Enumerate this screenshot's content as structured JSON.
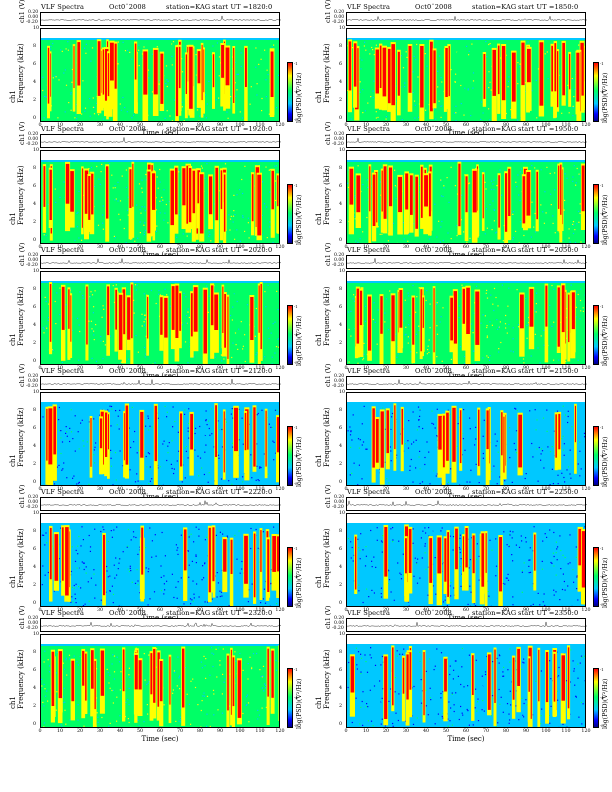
{
  "header": {
    "title": "VLF Spectra",
    "station": "station=KAG",
    "ut_prefix": "start  UT ="
  },
  "axes": {
    "wave_ylabel": "ch1 (V)",
    "spec_ylabel": "Frequency  (kHz)",
    "spec_ylabel_prefix": "ch1",
    "xlabel": "Time  (sec)",
    "colorbar_label": "log(PSD)(V²/Hz)",
    "wave_yticks": [
      "0.20",
      "0.00",
      "-0.20"
    ],
    "freq_yticks": [
      "10",
      "8",
      "6",
      "4",
      "2",
      "0"
    ],
    "time_xticks": [
      "0",
      "10",
      "20",
      "30",
      "40",
      "50",
      "60",
      "70",
      "80",
      "90",
      "100",
      "110",
      "120"
    ],
    "colorbar_ticks": [
      "-1",
      "-4",
      "-8"
    ]
  },
  "colors": {
    "high": "#ff0000",
    "mid_high": "#ffff00",
    "mid": "#00ff66",
    "low": "#00c8ff",
    "lowest": "#0000ff"
  },
  "chart_data": [
    {
      "type": "heatmap",
      "date": "Oct0¨2008",
      "start_ut": "1820:0",
      "x_unit": "sec",
      "xlim": [
        0,
        120
      ],
      "y_unit": "kHz",
      "ylim": [
        0,
        10
      ],
      "activity": "high"
    },
    {
      "type": "heatmap",
      "date": "Oct0¨2008",
      "start_ut": "1850:0",
      "x_unit": "sec",
      "xlim": [
        0,
        120
      ],
      "y_unit": "kHz",
      "ylim": [
        0,
        10
      ],
      "activity": "high"
    },
    {
      "type": "heatmap",
      "date": "Oct0¨2008",
      "start_ut": "1920:0",
      "x_unit": "sec",
      "xlim": [
        0,
        120
      ],
      "y_unit": "kHz",
      "ylim": [
        0,
        10
      ],
      "activity": "high"
    },
    {
      "type": "heatmap",
      "date": "Oct0¨2008",
      "start_ut": "1950:0",
      "x_unit": "sec",
      "xlim": [
        0,
        120
      ],
      "y_unit": "kHz",
      "ylim": [
        0,
        10
      ],
      "activity": "high"
    },
    {
      "type": "heatmap",
      "date": "Oct0¨2008",
      "start_ut": "2020:0",
      "x_unit": "sec",
      "xlim": [
        0,
        120
      ],
      "y_unit": "kHz",
      "ylim": [
        0,
        10
      ],
      "activity": "medium"
    },
    {
      "type": "heatmap",
      "date": "Oct0¨2008",
      "start_ut": "2050:0",
      "x_unit": "sec",
      "xlim": [
        0,
        120
      ],
      "y_unit": "kHz",
      "ylim": [
        0,
        10
      ],
      "activity": "medium"
    },
    {
      "type": "heatmap",
      "date": "Oct0¨2008",
      "start_ut": "2120:0",
      "x_unit": "sec",
      "xlim": [
        0,
        120
      ],
      "y_unit": "kHz",
      "ylim": [
        0,
        10
      ],
      "activity": "low"
    },
    {
      "type": "heatmap",
      "date": "Oct0¨2008",
      "start_ut": "2150:0",
      "x_unit": "sec",
      "xlim": [
        0,
        120
      ],
      "y_unit": "kHz",
      "ylim": [
        0,
        10
      ],
      "activity": "low"
    },
    {
      "type": "heatmap",
      "date": "Oct0¨2008",
      "start_ut": "2220:0",
      "x_unit": "sec",
      "xlim": [
        0,
        120
      ],
      "y_unit": "kHz",
      "ylim": [
        0,
        10
      ],
      "activity": "low"
    },
    {
      "type": "heatmap",
      "date": "Oct0¨2008",
      "start_ut": "2250:0",
      "x_unit": "sec",
      "xlim": [
        0,
        120
      ],
      "y_unit": "kHz",
      "ylim": [
        0,
        10
      ],
      "activity": "low"
    },
    {
      "type": "heatmap",
      "date": "Oct0¨2008",
      "start_ut": "2320:0",
      "x_unit": "sec",
      "xlim": [
        0,
        120
      ],
      "y_unit": "kHz",
      "ylim": [
        0,
        10
      ],
      "activity": "medium"
    },
    {
      "type": "heatmap",
      "date": "Oct0¨2008",
      "start_ut": "2350:0",
      "x_unit": "sec",
      "xlim": [
        0,
        120
      ],
      "y_unit": "kHz",
      "ylim": [
        0,
        10
      ],
      "activity": "low"
    }
  ]
}
